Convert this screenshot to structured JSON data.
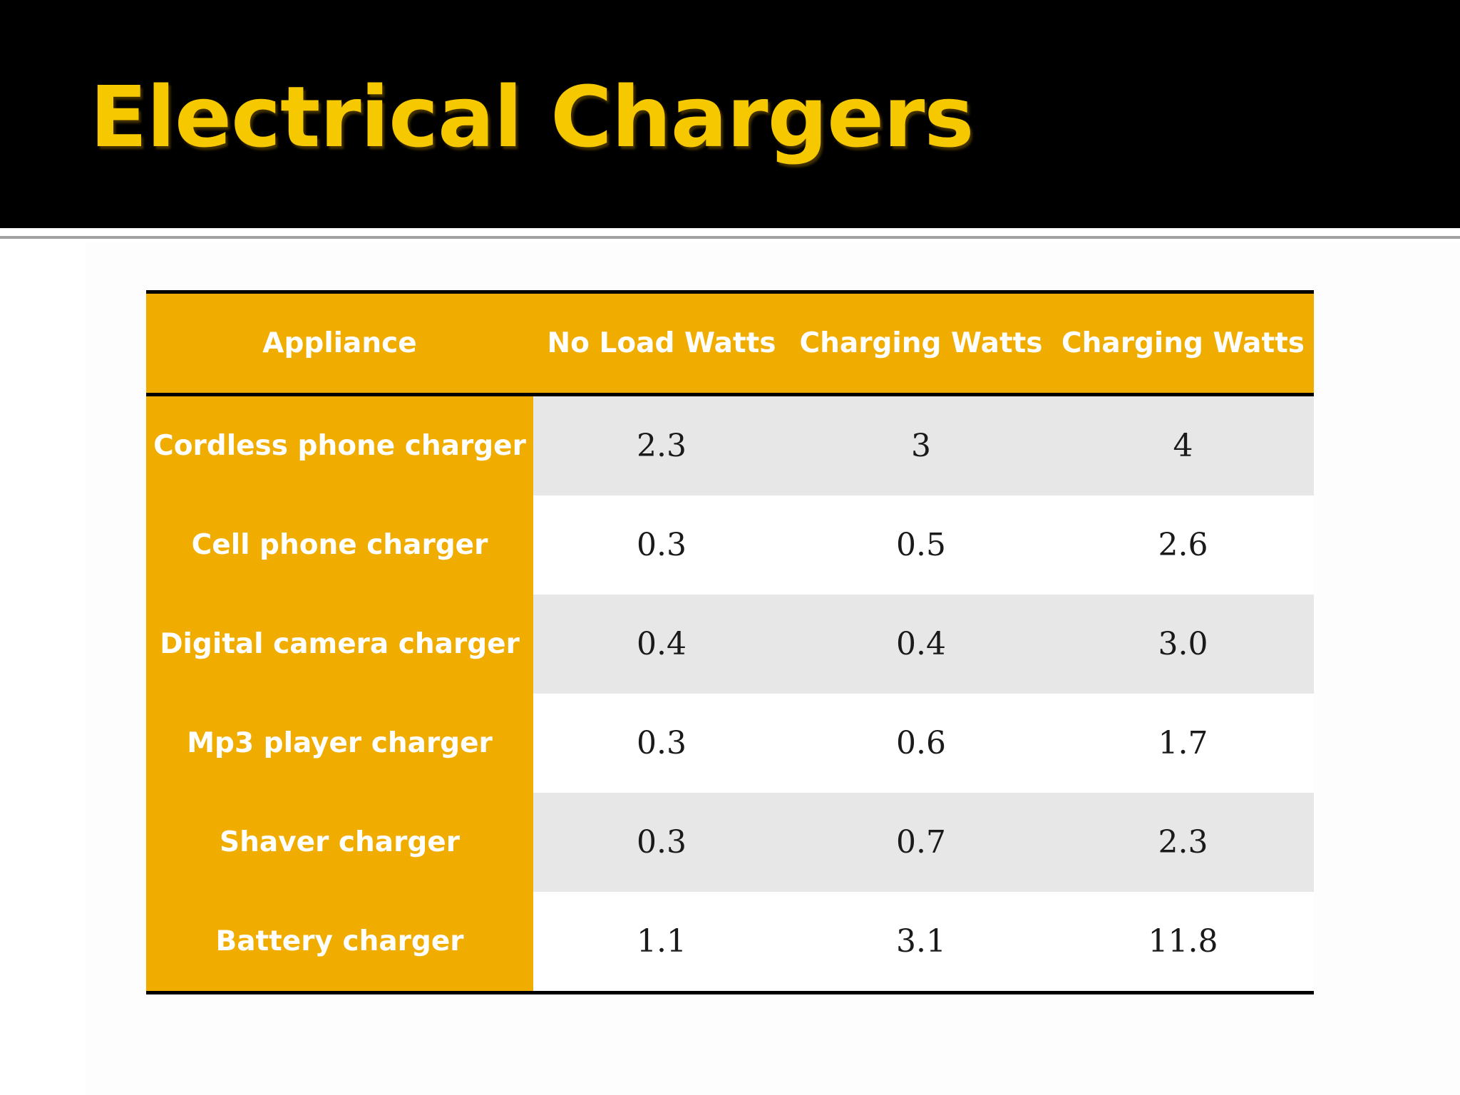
{
  "slide": {
    "title": "Electrical Chargers"
  },
  "table": {
    "headers": [
      "Appliance",
      "No Load Watts",
      "Charging Watts",
      "Charging Watts"
    ],
    "rows": [
      [
        "Cordless phone charger",
        "2.3",
        "3",
        "4"
      ],
      [
        "Cell phone charger",
        "0.3",
        "0.5",
        "2.6"
      ],
      [
        "Digital camera charger",
        "0.4",
        "0.4",
        "3.0"
      ],
      [
        "Mp3 player charger",
        "0.3",
        "0.6",
        "1.7"
      ],
      [
        "Shaver charger",
        "0.3",
        "0.7",
        "2.3"
      ],
      [
        "Battery charger",
        "1.1",
        "3.1",
        "11.8"
      ]
    ]
  },
  "colors": {
    "title": "#f5c800",
    "header_fill": "#f0ad00",
    "band_fill": "#e7e7e7",
    "title_bar": "#000000"
  }
}
